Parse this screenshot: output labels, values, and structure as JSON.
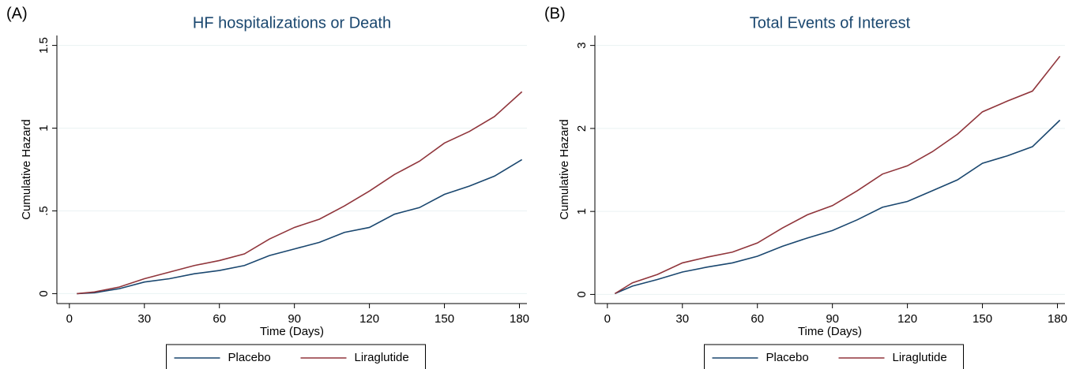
{
  "chart_data": [
    {
      "type": "line",
      "panel_label": "(A)",
      "title": "HF hospitalizations or Death",
      "x_label": "Time (Days)",
      "y_label": "Cumulative Hazard",
      "x": [
        3,
        10,
        20,
        30,
        40,
        50,
        60,
        70,
        80,
        90,
        100,
        110,
        120,
        130,
        140,
        150,
        160,
        170,
        181
      ],
      "series": [
        {
          "name": "Placebo",
          "color": "#1a476f",
          "values": [
            0,
            0.005,
            0.03,
            0.07,
            0.09,
            0.12,
            0.14,
            0.17,
            0.23,
            0.27,
            0.31,
            0.37,
            0.4,
            0.48,
            0.52,
            0.6,
            0.65,
            0.71,
            0.81
          ]
        },
        {
          "name": "Liraglutide",
          "color": "#90353b",
          "values": [
            0,
            0.01,
            0.04,
            0.09,
            0.13,
            0.17,
            0.2,
            0.24,
            0.33,
            0.4,
            0.45,
            0.53,
            0.62,
            0.72,
            0.8,
            0.91,
            0.98,
            1.07,
            1.22
          ]
        }
      ],
      "xlim": [
        -5,
        183
      ],
      "xticks": [
        0,
        30,
        60,
        90,
        120,
        150,
        180
      ],
      "ylim": [
        -0.06,
        1.56
      ],
      "yticks": [
        0,
        {
          "value": 0.5,
          "label": ".5"
        },
        1,
        1.5
      ],
      "grid": true,
      "legend": "bottom"
    },
    {
      "type": "line",
      "panel_label": "(B)",
      "title": "Total Events of Interest",
      "x_label": "Time (Days)",
      "y_label": "Cumulative Hazard",
      "x": [
        3,
        10,
        20,
        30,
        40,
        50,
        60,
        70,
        80,
        90,
        100,
        110,
        120,
        130,
        140,
        150,
        160,
        170,
        181
      ],
      "series": [
        {
          "name": "Placebo",
          "color": "#1a476f",
          "values": [
            0.01,
            0.1,
            0.18,
            0.27,
            0.33,
            0.38,
            0.46,
            0.58,
            0.68,
            0.77,
            0.9,
            1.05,
            1.12,
            1.25,
            1.38,
            1.58,
            1.67,
            1.78,
            2.1
          ]
        },
        {
          "name": "Liraglutide",
          "color": "#90353b",
          "values": [
            0.01,
            0.14,
            0.24,
            0.38,
            0.45,
            0.51,
            0.62,
            0.8,
            0.96,
            1.07,
            1.25,
            1.45,
            1.55,
            1.72,
            1.93,
            2.2,
            2.33,
            2.45,
            2.87
          ]
        }
      ],
      "xlim": [
        -5,
        183
      ],
      "xticks": [
        0,
        30,
        60,
        90,
        120,
        150,
        180
      ],
      "ylim": [
        -0.11,
        3.12
      ],
      "yticks": [
        0,
        1,
        2,
        3
      ],
      "grid": true,
      "legend": "bottom"
    }
  ]
}
